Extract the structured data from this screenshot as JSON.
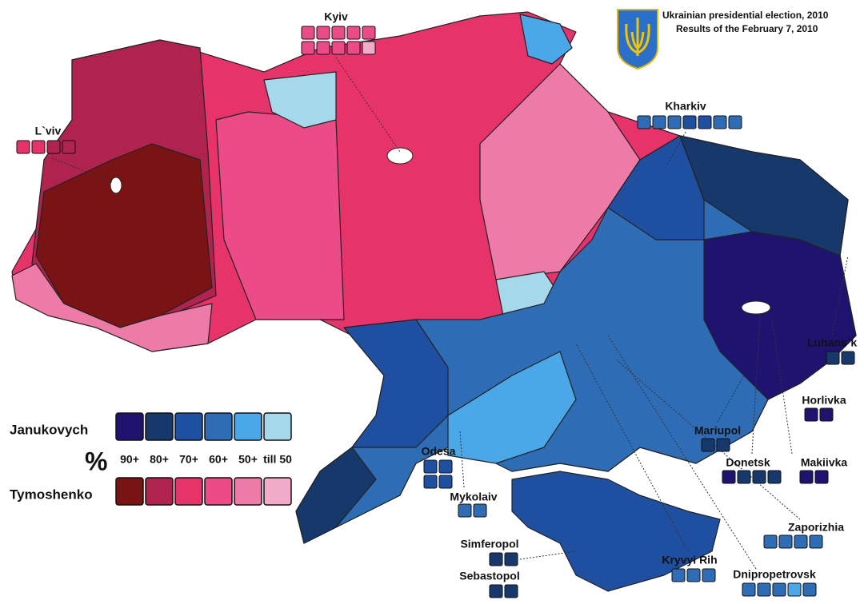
{
  "title": "Ukrainian presidential election, 2010",
  "subtitle": "Results of the February 7, 2010",
  "legend": {
    "symbol": "%",
    "levels": [
      "90+",
      "80+",
      "70+",
      "60+",
      "50+",
      "till 50"
    ],
    "candidates": [
      {
        "name": "Janukovych",
        "colors": [
          "#1e1470",
          "#17386b",
          "#1f4fa0",
          "#2e6db5",
          "#4aa8e8",
          "#a6d8ec"
        ]
      },
      {
        "name": "Tymoshenko",
        "colors": [
          "#7a1414",
          "#b0234f",
          "#e8336a",
          "#ec4b88",
          "#ee7aa8",
          "#f2acca"
        ]
      }
    ]
  },
  "cities": [
    {
      "name": "Kyiv",
      "boxes": [
        "#ec4b88",
        "#ec4b88",
        "#ec4b88",
        "#ec4b88",
        "#ec4b88",
        "#ec4b88",
        "#ec4b88",
        "#ec4b88",
        "#ec4b88",
        "#f2acca"
      ]
    },
    {
      "name": "L`viv",
      "boxes": [
        "#e8336a",
        "#e8336a",
        "#b0234f",
        "#b0234f"
      ]
    },
    {
      "name": "Kharkiv",
      "boxes": [
        "#2e6db5",
        "#2e6db5",
        "#2e6db5",
        "#1f4fa0",
        "#1f4fa0",
        "#2e6db5",
        "#2e6db5"
      ]
    },
    {
      "name": "Luhans`k",
      "boxes": [
        "#17386b",
        "#17386b"
      ]
    },
    {
      "name": "Horlivka",
      "boxes": [
        "#1e1470",
        "#1e1470"
      ]
    },
    {
      "name": "Mariupol",
      "boxes": [
        "#17386b",
        "#17386b"
      ]
    },
    {
      "name": "Donetsk",
      "boxes": [
        "#1e1470",
        "#17386b",
        "#17386b",
        "#17386b"
      ]
    },
    {
      "name": "Makiivka",
      "boxes": [
        "#1e1470",
        "#1e1470"
      ]
    },
    {
      "name": "Odesa",
      "boxes": [
        "#1f4fa0",
        "#1f4fa0",
        "#1f4fa0",
        "#1f4fa0"
      ]
    },
    {
      "name": "Mykolaiv",
      "boxes": [
        "#2e6db5",
        "#2e6db5"
      ]
    },
    {
      "name": "Zaporizhia",
      "boxes": [
        "#2e6db5",
        "#2e6db5",
        "#2e6db5",
        "#2e6db5"
      ]
    },
    {
      "name": "Simferopol",
      "boxes": [
        "#17386b",
        "#17386b"
      ]
    },
    {
      "name": "Sebastopol",
      "boxes": [
        "#17386b",
        "#17386b"
      ]
    },
    {
      "name": "Kryvyi Rih",
      "boxes": [
        "#2e6db5",
        "#2e6db5",
        "#2e6db5"
      ]
    },
    {
      "name": "Dnipropetrovsk",
      "boxes": [
        "#2e6db5",
        "#2e6db5",
        "#2e6db5",
        "#4aa8e8",
        "#2e6db5"
      ]
    }
  ]
}
